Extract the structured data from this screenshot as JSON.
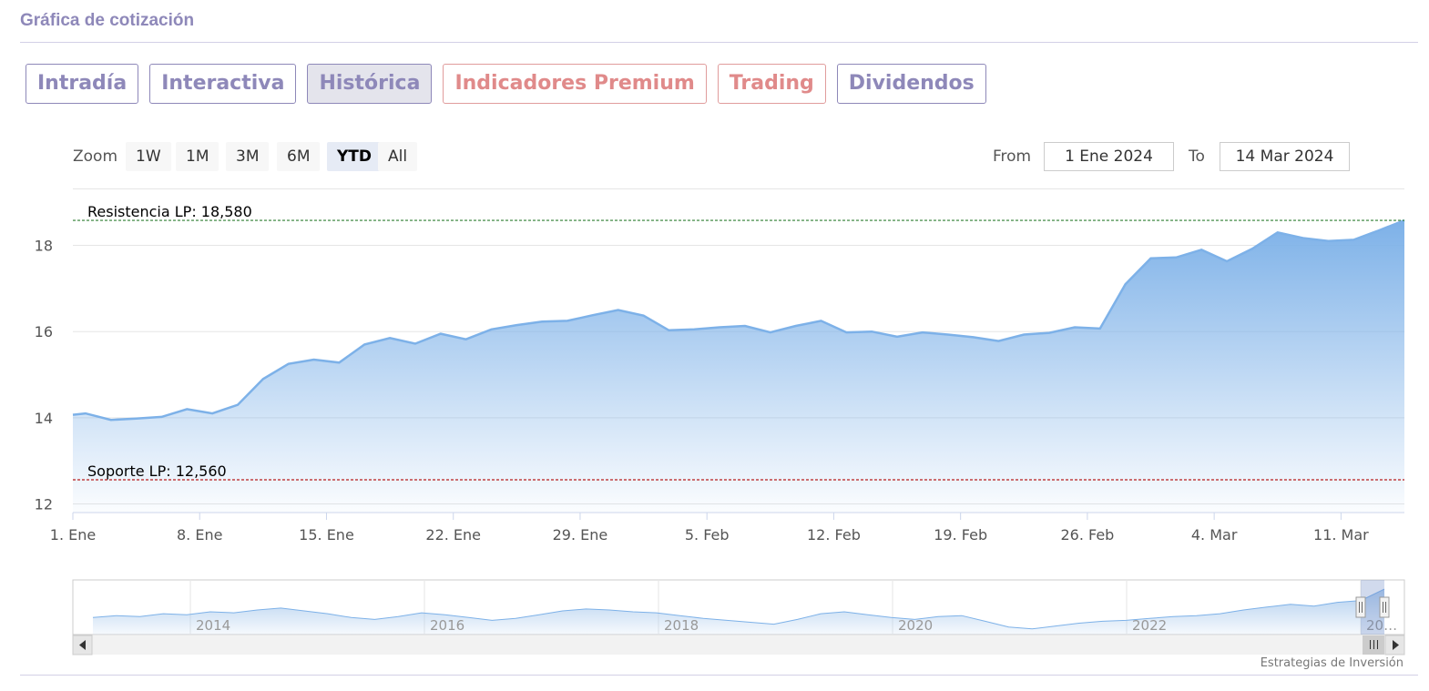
{
  "header": {
    "title": "Gráfica de cotización"
  },
  "tabs": [
    {
      "label": "Intradía",
      "active": false,
      "premium": false
    },
    {
      "label": "Interactiva",
      "active": false,
      "premium": false
    },
    {
      "label": "Histórica",
      "active": true,
      "premium": false
    },
    {
      "label": "Indicadores Premium",
      "active": false,
      "premium": true
    },
    {
      "label": "Trading",
      "active": false,
      "premium": true
    },
    {
      "label": "Dividendos",
      "active": false,
      "premium": false
    }
  ],
  "toolbar": {
    "zoom_label": "Zoom",
    "zoom_buttons": [
      "1W",
      "1M",
      "3M",
      "6M",
      "YTD",
      "All"
    ],
    "zoom_selected": "YTD",
    "from_label": "From",
    "from_value": "1 Ene 2024",
    "to_label": "To",
    "to_value": "14 Mar 2024"
  },
  "chart_data": {
    "type": "area",
    "y_ticks": [
      12,
      14,
      16,
      18
    ],
    "ylim": [
      11.8,
      19.3
    ],
    "x_ticks": [
      "1. Ene",
      "8. Ene",
      "15. Ene",
      "22. Ene",
      "29. Ene",
      "5. Feb",
      "12. Feb",
      "19. Feb",
      "26. Feb",
      "4. Mar",
      "11. Mar"
    ],
    "x": [
      0,
      0.5,
      1.5,
      2.5,
      3.5,
      4.5,
      5.5,
      6.5,
      7.5,
      8.5,
      9.5,
      10.5,
      11.5,
      12.5,
      13.5,
      14.5,
      15.5,
      16.5,
      17.5,
      18.5,
      19.5,
      20.5,
      21.5,
      22.5,
      23.5,
      24.5,
      25.5,
      26.5,
      27.5,
      28.5,
      29.5,
      30.5,
      31.5,
      32.5,
      33.5,
      34.5,
      35.5,
      36.5,
      37.5,
      38.5,
      39.5,
      40.5,
      41.5,
      42.5,
      43.5,
      44.5,
      45.5,
      46.5,
      47.5,
      48.5,
      49.5,
      50.5,
      51.5,
      52.5
    ],
    "values": [
      14.07,
      14.1,
      13.95,
      13.98,
      14.02,
      14.2,
      14.1,
      14.3,
      14.9,
      15.25,
      15.35,
      15.28,
      15.7,
      15.85,
      15.72,
      15.95,
      15.82,
      16.05,
      16.15,
      16.23,
      16.25,
      16.38,
      16.5,
      16.37,
      16.03,
      16.05,
      16.1,
      16.13,
      15.98,
      16.13,
      16.25,
      15.98,
      16.0,
      15.88,
      15.98,
      15.93,
      15.87,
      15.78,
      15.93,
      15.97,
      16.1,
      16.07,
      17.1,
      17.7,
      17.72,
      17.9,
      17.63,
      17.92,
      18.3,
      18.17,
      18.1,
      18.13,
      18.35,
      18.58
    ],
    "resistance": {
      "label": "Resistencia LP: 18,580",
      "value": 18.58,
      "color": "#2e7d32"
    },
    "support": {
      "label": "Soporte LP: 12,560",
      "value": 12.56,
      "color": "#b71c1c"
    },
    "series_color": "#7db1e8",
    "grid": true,
    "navigator": {
      "year_labels": [
        "2014",
        "2016",
        "2018",
        "2020",
        "2022",
        "20…"
      ],
      "values": [
        14.8,
        15.0,
        14.9,
        15.2,
        15.1,
        15.4,
        15.3,
        15.6,
        15.8,
        15.5,
        15.2,
        14.8,
        14.6,
        14.9,
        15.3,
        15.1,
        14.8,
        14.5,
        14.7,
        15.1,
        15.5,
        15.7,
        15.6,
        15.4,
        15.3,
        15.0,
        14.7,
        14.5,
        14.3,
        14.1,
        14.6,
        15.2,
        15.4,
        15.1,
        14.8,
        14.6,
        14.9,
        15.0,
        14.4,
        13.8,
        13.6,
        13.9,
        14.2,
        14.4,
        14.5,
        14.7,
        14.9,
        15.0,
        15.2,
        15.6,
        15.9,
        16.2,
        16.0,
        16.4,
        16.6,
        17.8
      ]
    }
  },
  "footer": {
    "credit": "Estrategias de Inversión"
  }
}
